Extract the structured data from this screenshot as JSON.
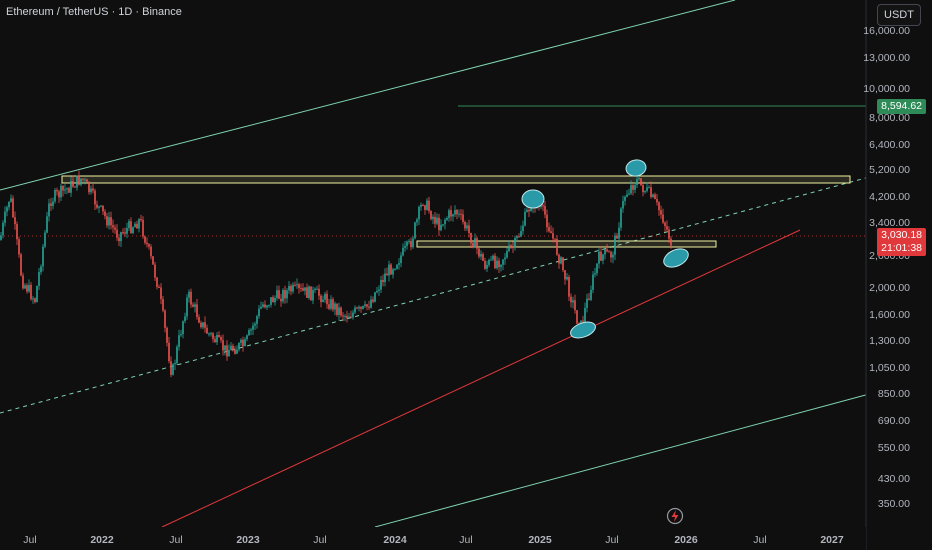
{
  "header": {
    "title": "Ethereum / TetherUS · 1D · Binance",
    "currency": "USDT"
  },
  "price_axis": {
    "labels": [
      "16,000.00",
      "13,000.00",
      "10,000.00",
      "8,000.00",
      "6,400.00",
      "5,200.00",
      "4,200.00",
      "3,400.00",
      "2,600.00",
      "2,000.00",
      "1,600.00",
      "1,300.00",
      "1,050.00",
      "850.00",
      "690.00",
      "550.00",
      "430.00",
      "350.00"
    ],
    "target_label": "8,594.62",
    "current_price": "3,030.18",
    "countdown": "21:01:38"
  },
  "time_axis": {
    "labels": [
      "Jul",
      "2022",
      "Jul",
      "2023",
      "Jul",
      "2024",
      "Jul",
      "2025",
      "Jul",
      "2026",
      "Jul",
      "2027"
    ]
  },
  "colors": {
    "background": "#0f0f0f",
    "candle_up": "#26a69a",
    "candle_down": "#ef5350",
    "channel": "#7fd4b0",
    "support": "#e0383b",
    "zone": "#f2f0a0",
    "highlight": "#2a9aa8",
    "target": "#2e8b57"
  },
  "icons": {
    "replay": "bolt-circle-icon"
  }
}
